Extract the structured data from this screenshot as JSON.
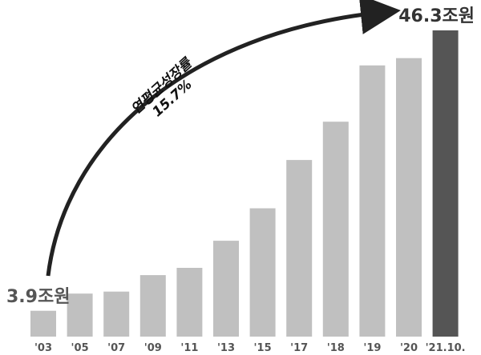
{
  "chart_data": {
    "type": "bar",
    "categories": [
      "'03",
      "'05",
      "'07",
      "'09",
      "'11",
      "'13",
      "'15",
      "'17",
      "'18",
      "'19",
      "'20",
      "'21.10."
    ],
    "values": [
      3.9,
      6.5,
      6.8,
      9.3,
      10.4,
      14.5,
      19.4,
      26.7,
      32.5,
      41.0,
      42.1,
      46.3
    ],
    "data_labels": {
      "first": "3.9조원",
      "last": "46.3조원"
    },
    "annotation": {
      "line1": "연평균성장률",
      "line2": "15.7%"
    },
    "ylim": [
      0,
      46.3
    ],
    "grid": false,
    "colors": {
      "bar": "#c0c0c0",
      "highlight": "#555555",
      "arrow": "#222222",
      "text": "#555555"
    }
  }
}
